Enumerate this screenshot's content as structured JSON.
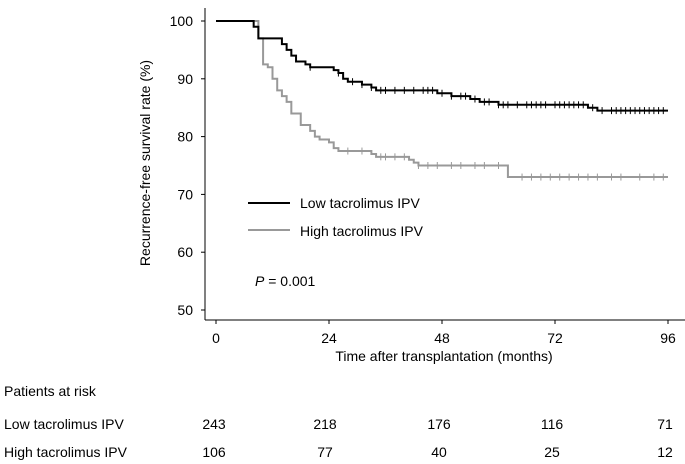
{
  "chart_data": {
    "type": "line",
    "subtype": "kaplan-meier",
    "title": "",
    "xlabel": "Time after transplantation (months)",
    "ylabel": "Recurrence-free survival rate (%)",
    "xlim": [
      0,
      96
    ],
    "ylim": [
      50,
      100
    ],
    "xticks": [
      0,
      24,
      48,
      72,
      96
    ],
    "yticks": [
      50,
      60,
      70,
      80,
      90,
      100
    ],
    "annotation": {
      "italic": "P",
      "rest": " = 0.001"
    },
    "series": [
      {
        "name": "Low tacrolimus IPV",
        "color": "#000000",
        "steps": [
          [
            0,
            100
          ],
          [
            7,
            100
          ],
          [
            8,
            99
          ],
          [
            9,
            97
          ],
          [
            13,
            97
          ],
          [
            14,
            96
          ],
          [
            15,
            95
          ],
          [
            16,
            94
          ],
          [
            17,
            93
          ],
          [
            19,
            92.5
          ],
          [
            20,
            92
          ],
          [
            24,
            92
          ],
          [
            25,
            91.5
          ],
          [
            26,
            91
          ],
          [
            27,
            90
          ],
          [
            28,
            89.5
          ],
          [
            31,
            89
          ],
          [
            33,
            88.5
          ],
          [
            34,
            88
          ],
          [
            46,
            88
          ],
          [
            47,
            87.5
          ],
          [
            50,
            87
          ],
          [
            54,
            86.5
          ],
          [
            56,
            86
          ],
          [
            60,
            85.5
          ],
          [
            78,
            85.5
          ],
          [
            79,
            85
          ],
          [
            81,
            84.5
          ],
          [
            96,
            84.5
          ]
        ],
        "censor_marks": [
          20,
          26,
          29,
          31,
          33,
          35,
          36,
          38,
          40,
          42,
          44,
          45,
          46,
          48,
          50,
          52,
          53,
          55,
          57,
          58,
          60,
          61,
          62,
          64,
          66,
          67,
          68,
          69,
          70,
          72,
          73,
          74,
          75,
          76,
          77,
          78,
          80,
          82,
          84,
          85,
          86,
          87,
          88,
          89,
          90,
          91,
          92,
          93,
          94,
          95
        ]
      },
      {
        "name": "High tacrolimus IPV",
        "color": "#999999",
        "steps": [
          [
            0,
            100
          ],
          [
            8,
            100
          ],
          [
            9,
            97
          ],
          [
            10,
            92.5
          ],
          [
            11,
            92
          ],
          [
            12,
            90
          ],
          [
            13,
            88
          ],
          [
            14,
            87
          ],
          [
            15,
            86
          ],
          [
            16,
            84
          ],
          [
            18,
            82
          ],
          [
            20,
            81
          ],
          [
            21,
            80
          ],
          [
            22,
            79.5
          ],
          [
            24,
            79
          ],
          [
            25,
            78
          ],
          [
            26,
            77.5
          ],
          [
            33,
            77
          ],
          [
            34,
            76.5
          ],
          [
            41,
            76
          ],
          [
            42,
            75.5
          ],
          [
            43,
            75
          ],
          [
            61,
            75
          ],
          [
            62,
            73
          ],
          [
            96,
            73
          ]
        ],
        "censor_marks": [
          28,
          31,
          35,
          36,
          38,
          40,
          43,
          45,
          47,
          50,
          52,
          55,
          57,
          60,
          65,
          67,
          69,
          71,
          73,
          75,
          77,
          79,
          81,
          84,
          86,
          90,
          93,
          95
        ]
      }
    ],
    "risk_table": {
      "title": "Patients at risk",
      "timepoints": [
        0,
        24,
        48,
        72,
        96
      ],
      "rows": [
        {
          "label": "Low tacrolimus IPV",
          "values": [
            243,
            218,
            176,
            116,
            71
          ]
        },
        {
          "label": "High tacrolimus IPV",
          "values": [
            106,
            77,
            40,
            25,
            12
          ]
        }
      ]
    }
  }
}
